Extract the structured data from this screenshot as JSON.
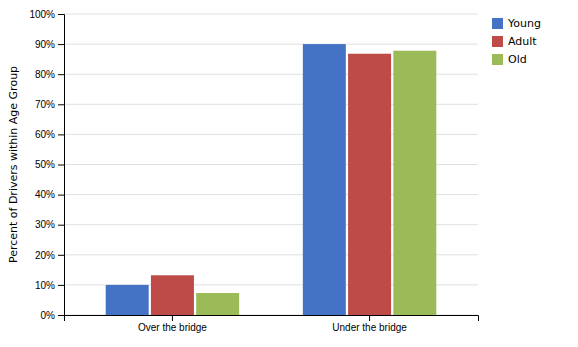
{
  "chart_data": {
    "type": "bar",
    "categories": [
      "Over the bridge",
      "Under the bridge"
    ],
    "series": [
      {
        "name": "Young",
        "color": "#4472C4",
        "values": [
          10.0,
          90.0
        ]
      },
      {
        "name": "Adult",
        "color": "#BE4B48",
        "values": [
          13.2,
          86.8
        ]
      },
      {
        "name": "Old",
        "color": "#9BBB59",
        "values": [
          7.3,
          87.8
        ]
      }
    ],
    "ylabel": "Percent of Drivers within Age Group",
    "ylim": [
      0,
      100
    ],
    "yticks": [
      {
        "value": 0,
        "label": "0%"
      },
      {
        "value": 10,
        "label": "10%"
      },
      {
        "value": 20,
        "label": "20%"
      },
      {
        "value": 30,
        "label": "30%"
      },
      {
        "value": 40,
        "label": "40%"
      },
      {
        "value": 50,
        "label": "50%"
      },
      {
        "value": 60,
        "label": "60%"
      },
      {
        "value": 70,
        "label": "70%"
      },
      {
        "value": 80,
        "label": "80%"
      },
      {
        "value": 90,
        "label": "90%"
      },
      {
        "value": 100,
        "label": "100%"
      }
    ],
    "grid": true,
    "legend": "upper right"
  }
}
